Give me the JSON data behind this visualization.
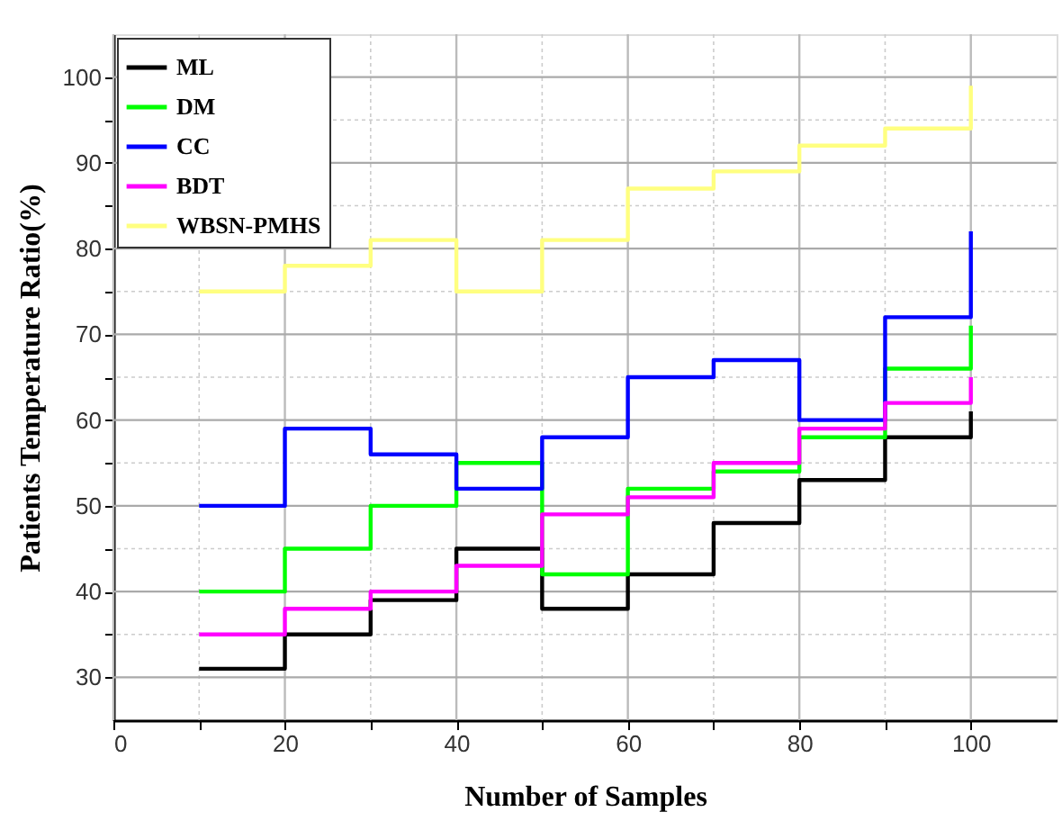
{
  "chart_data": {
    "type": "step",
    "xlabel": "Number of Samples",
    "ylabel": "Patients Temperature Ratio(%)",
    "x": [
      10,
      20,
      30,
      40,
      50,
      60,
      70,
      80,
      90,
      100
    ],
    "series": [
      {
        "name": "ML",
        "color": "#000000",
        "values": [
          31,
          35,
          39,
          45,
          38,
          42,
          48,
          53,
          58,
          61
        ]
      },
      {
        "name": "DM",
        "color": "#00ff00",
        "values": [
          40,
          45,
          50,
          55,
          42,
          52,
          54,
          58,
          66,
          71
        ]
      },
      {
        "name": "CC",
        "color": "#0000ff",
        "values": [
          50,
          59,
          56,
          52,
          58,
          65,
          67,
          60,
          72,
          82
        ]
      },
      {
        "name": "BDT",
        "color": "#ff00ff",
        "values": [
          35,
          38,
          40,
          43,
          49,
          51,
          55,
          59,
          62,
          65
        ]
      },
      {
        "name": "WBSN-PMHS",
        "color": "#ffff80",
        "values": [
          75,
          78,
          81,
          75,
          81,
          87,
          89,
          92,
          94,
          99
        ]
      }
    ],
    "xlim": [
      0,
      110
    ],
    "ylim": [
      25,
      105
    ],
    "xticks": [
      0,
      {
        "value": 10,
        "label": null
      },
      20,
      {
        "value": 30,
        "label": null
      },
      40,
      {
        "value": 50,
        "label": null
      },
      60,
      {
        "value": 70,
        "label": null
      },
      80,
      {
        "value": 90,
        "label": null
      },
      100
    ],
    "yticks": [
      30,
      {
        "value": 35,
        "label": null
      },
      40,
      {
        "value": 45,
        "label": null
      },
      50,
      {
        "value": 55,
        "label": null
      },
      60,
      {
        "value": 65,
        "label": null
      },
      70,
      {
        "value": 75,
        "label": null
      },
      80,
      {
        "value": 85,
        "label": null
      },
      90,
      {
        "value": 95,
        "label": null
      },
      100
    ],
    "grid": true,
    "legend": "top left",
    "marker": "none",
    "line_style": "solid"
  }
}
